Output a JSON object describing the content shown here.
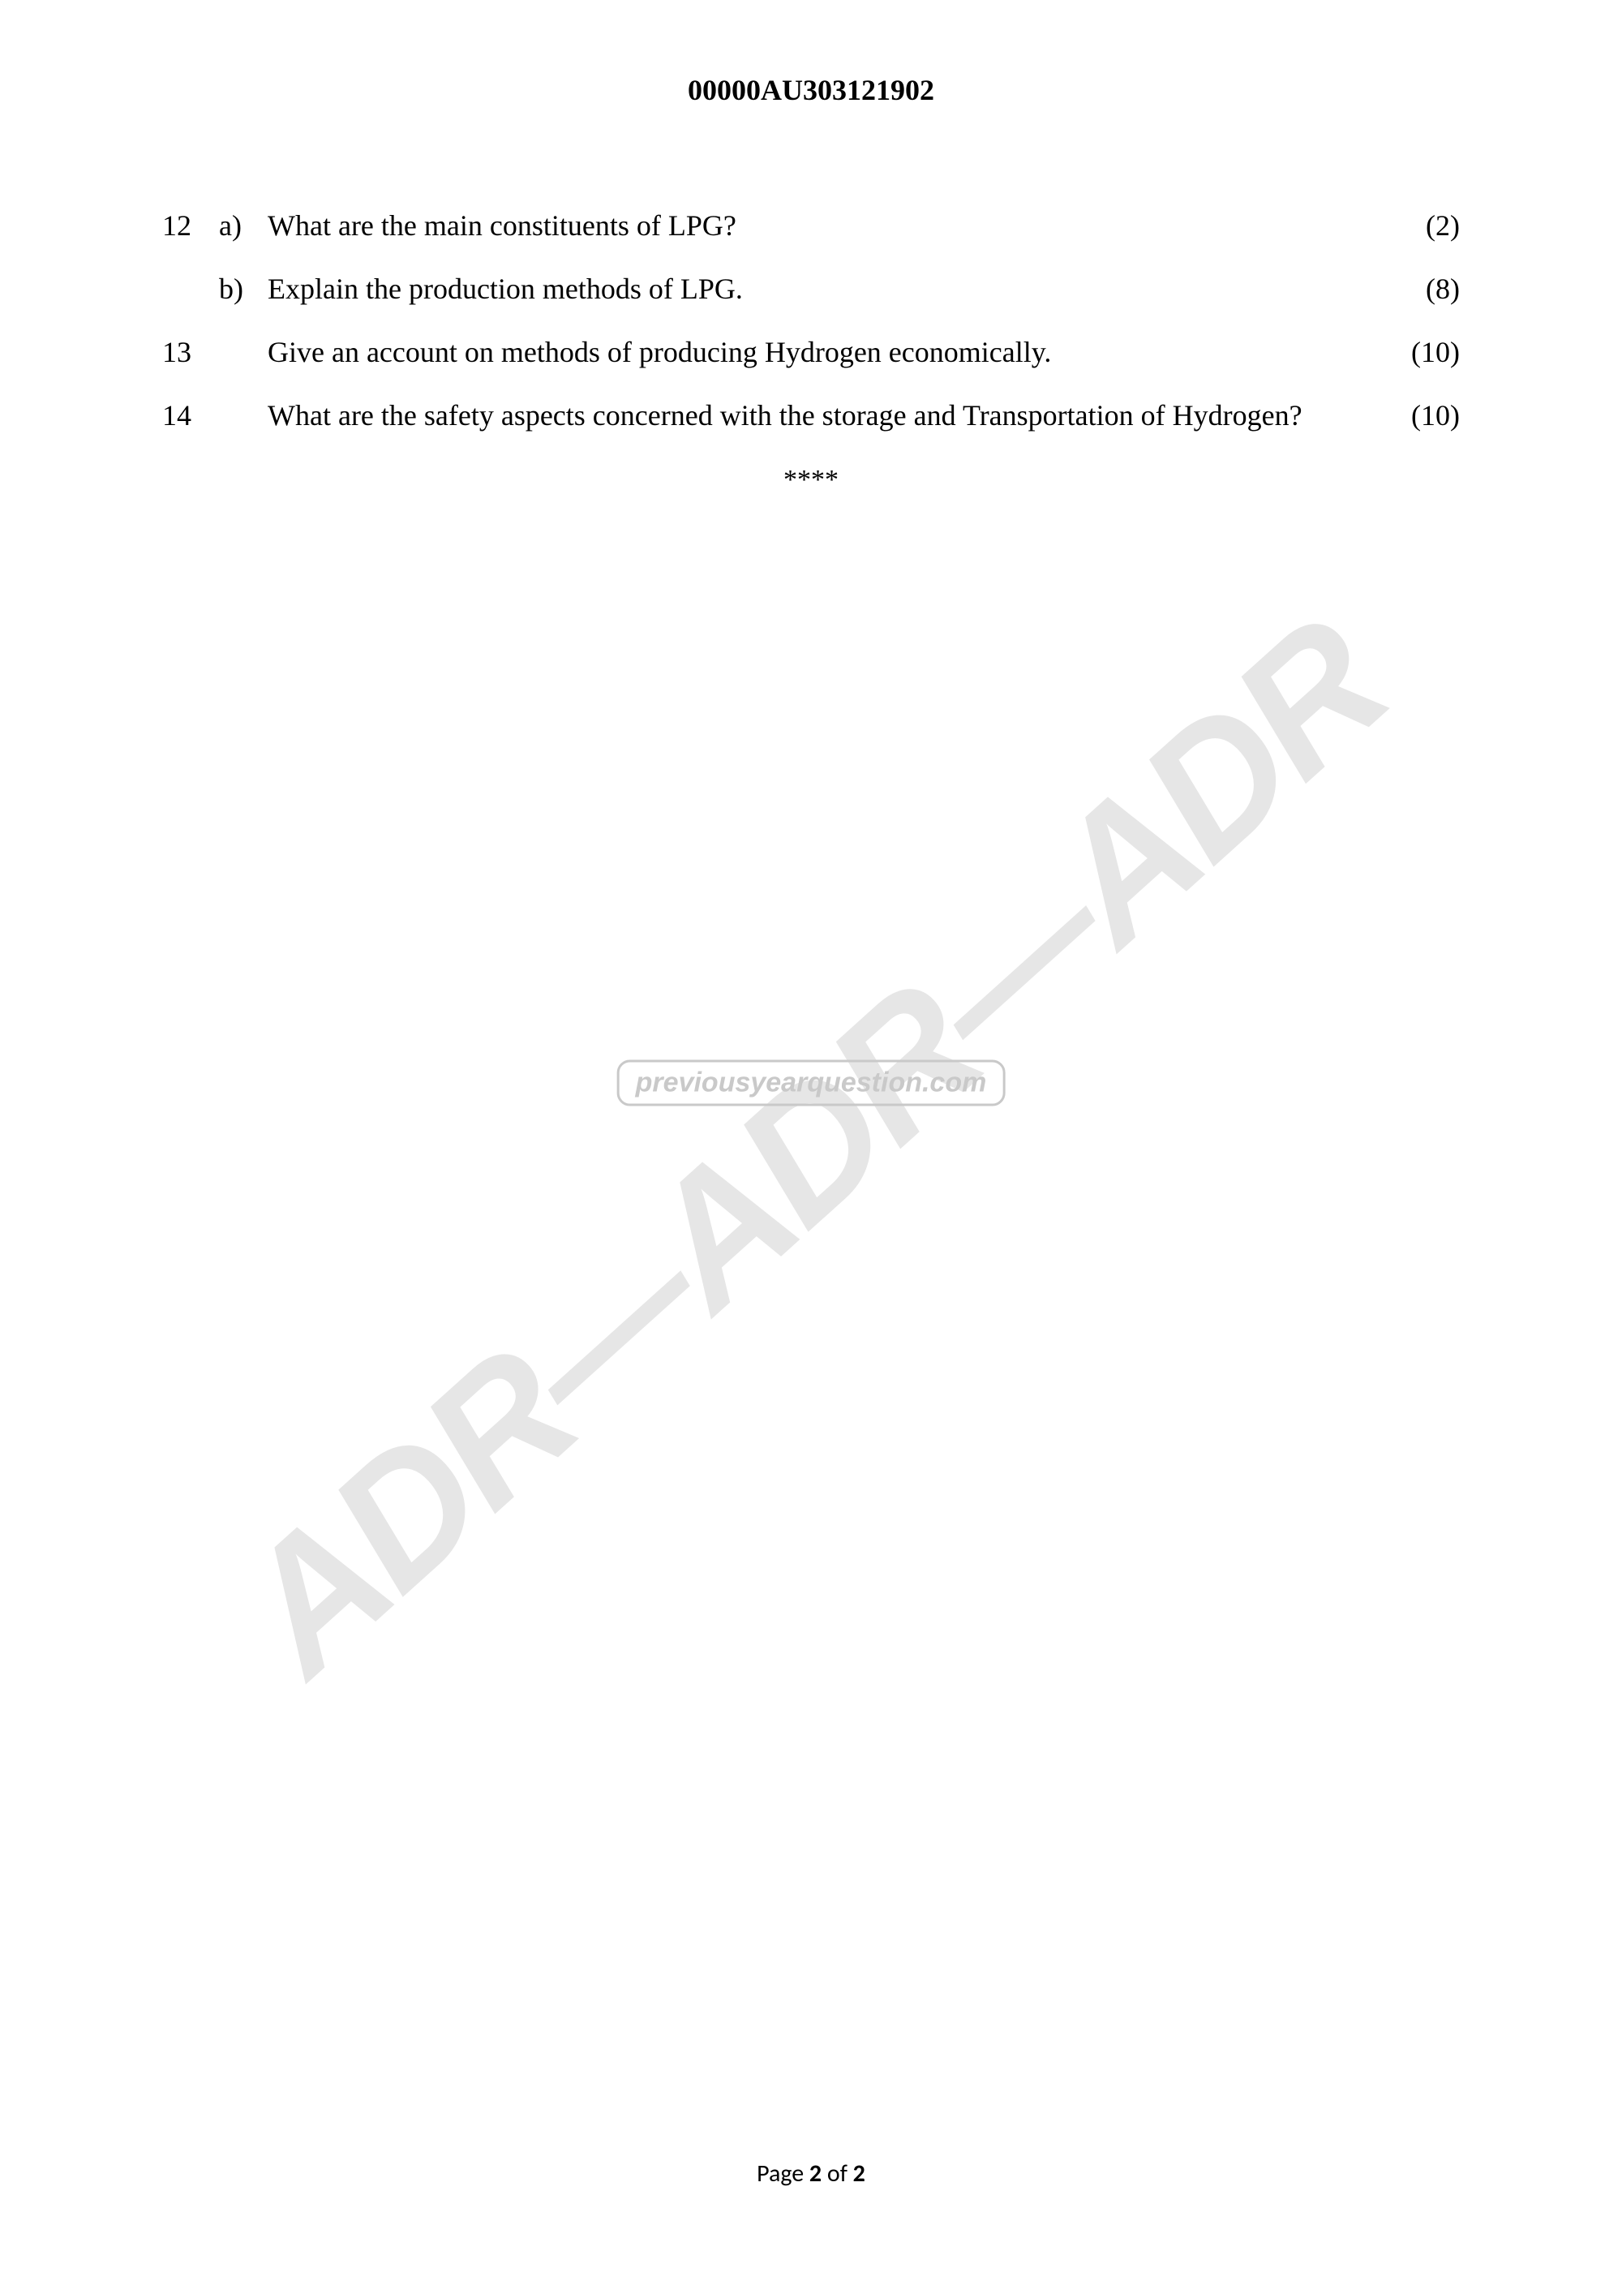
{
  "header": {
    "code": "00000AU303121902"
  },
  "questions": [
    {
      "num": "12",
      "sub": "a)",
      "text": "What are the main constituents of LPG?",
      "marks": "(2)",
      "multi": false
    },
    {
      "num": "",
      "sub": "b)",
      "text": "Explain the production methods of LPG.",
      "marks": "(8)",
      "multi": false
    },
    {
      "num": "13",
      "sub": "",
      "text": "Give an account on methods of producing Hydrogen economically.",
      "marks": "(10)",
      "multi": false
    },
    {
      "num": "14",
      "sub": "",
      "text": "What are the safety aspects concerned with the storage and Transportation of Hydrogen?",
      "marks": "(10)",
      "multi": true
    }
  ],
  "end_marker": "****",
  "watermark": {
    "diagonal_text": "ADR—ADR—ADR",
    "badge_text": "previousyearquestion.com"
  },
  "footer": {
    "prefix": "Page ",
    "current": "2",
    "separator": " of ",
    "total": "2"
  },
  "colors": {
    "text": "#000000",
    "background": "#ffffff",
    "watermark_gray": "#e6e6e6",
    "badge_gray": "#c9c9c9"
  }
}
